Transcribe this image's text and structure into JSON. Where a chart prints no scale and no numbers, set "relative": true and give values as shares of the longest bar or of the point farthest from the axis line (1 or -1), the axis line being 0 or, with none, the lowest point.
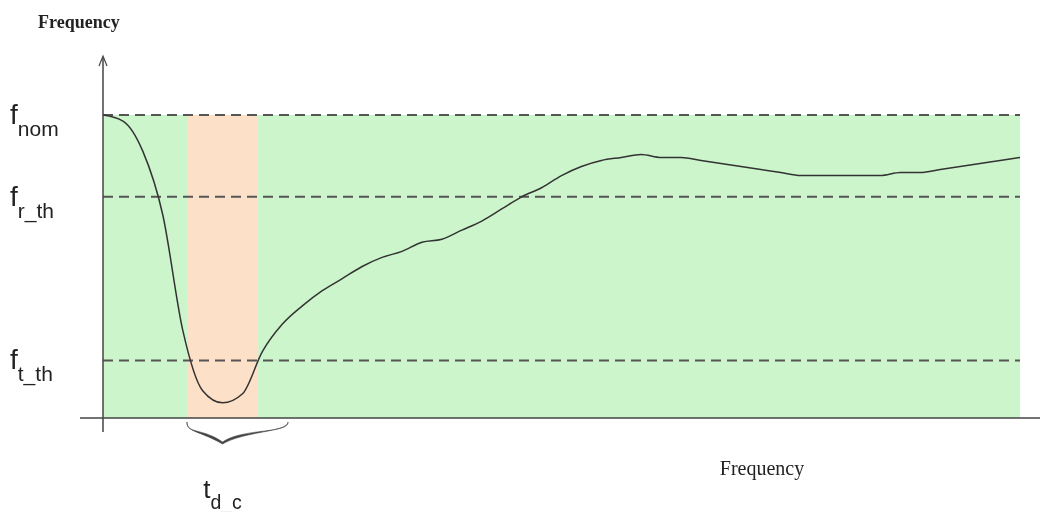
{
  "chart_data": {
    "type": "line",
    "ylabel": "Frequency",
    "relative": true,
    "line_style": "solid",
    "categories": [
      null,
      null,
      null,
      null,
      null,
      null,
      null,
      null,
      null,
      null,
      null,
      null,
      null,
      null,
      null,
      null,
      null,
      null,
      null,
      null,
      null,
      null,
      null,
      null,
      null,
      null,
      null,
      null,
      null,
      null,
      null,
      null,
      null,
      null,
      null,
      null,
      null,
      null,
      null,
      null,
      null,
      null,
      null,
      null,
      null,
      null,
      null
    ],
    "series": [
      {
        "color": "#333333",
        "values": [
          1.0,
          0.98,
          0.88,
          0.67,
          0.29,
          0.09,
          0.05,
          0.08,
          0.22,
          0.31,
          0.37,
          0.42,
          0.46,
          0.5,
          0.53,
          0.55,
          0.58,
          0.59,
          0.62,
          0.65,
          0.69,
          0.73,
          0.76,
          0.8,
          0.83,
          0.85,
          0.86,
          0.87,
          0.86,
          0.86,
          0.85,
          0.84,
          0.83,
          0.82,
          0.81,
          0.8,
          0.8,
          0.8,
          0.8,
          0.8,
          0.81,
          0.81,
          0.82,
          0.83,
          0.84,
          0.85,
          0.86
        ]
      }
    ],
    "ref_lines": [
      {
        "axis": "y",
        "value": 1.0,
        "label": "f$_{nom}$",
        "color": "#555555",
        "line_style": "dashed"
      },
      {
        "axis": "y",
        "value": 0.73,
        "label": "f$_{r_th}$",
        "color": "#555555",
        "line_style": "dashed"
      },
      {
        "axis": "y",
        "value": 0.19,
        "label": "f$_{t_th}$",
        "color": "#555555",
        "line_style": "dashed"
      }
    ],
    "annotations": [
      "t$_{d_c}$",
      "Frequency"
    ]
  }
}
